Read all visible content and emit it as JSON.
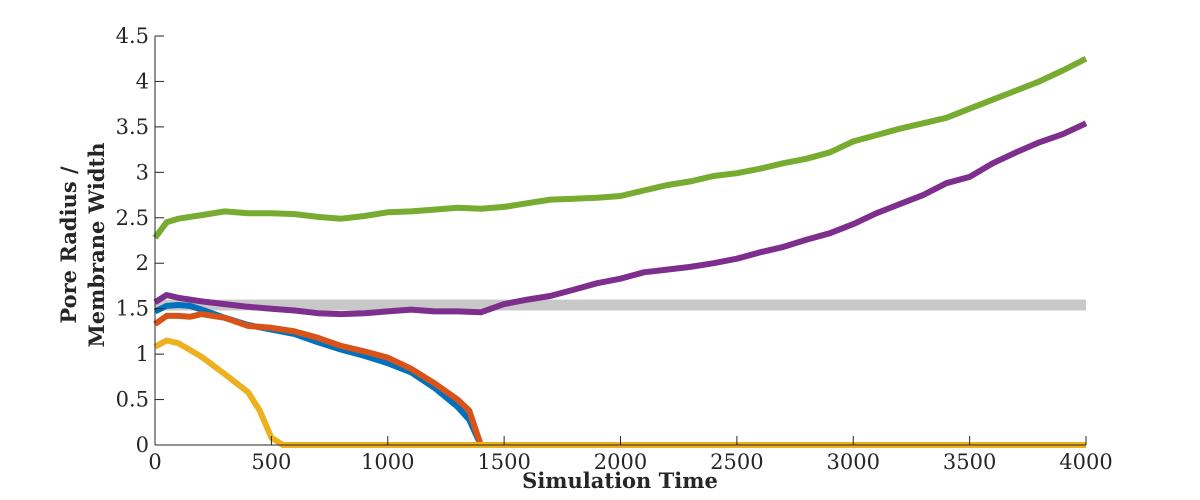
{
  "chart_data": {
    "type": "line",
    "title": "",
    "xlabel": "Simulation Time",
    "ylabel_lines": [
      "Pore Radius /",
      "Membrane Width"
    ],
    "xlim": [
      0,
      4000
    ],
    "ylim": [
      0,
      4.5
    ],
    "xticks": [
      0,
      500,
      1000,
      1500,
      2000,
      2500,
      3000,
      3500,
      4000
    ],
    "yticks": [
      0,
      0.5,
      1,
      1.5,
      2,
      2.5,
      3,
      3.5,
      4,
      4.5
    ],
    "xtick_labels": [
      "0",
      "500",
      "1000",
      "1500",
      "2000",
      "2500",
      "3000",
      "3500",
      "4000"
    ],
    "ytick_labels": [
      "0",
      "0.5",
      "1",
      "1.5",
      "2",
      "2.5",
      "3",
      "3.5",
      "4",
      "4.5"
    ],
    "grid": false,
    "reference_band": {
      "y_min": 1.48,
      "y_max": 1.6,
      "x": [
        0,
        4000
      ],
      "color": "#c8c8c8"
    },
    "series": [
      {
        "name": "green",
        "color": "#77ac30",
        "x": [
          0,
          50,
          100,
          200,
          300,
          400,
          500,
          600,
          700,
          800,
          900,
          1000,
          1100,
          1200,
          1300,
          1400,
          1500,
          1600,
          1700,
          1800,
          1900,
          2000,
          2100,
          2200,
          2300,
          2400,
          2500,
          2600,
          2700,
          2800,
          2900,
          3000,
          3100,
          3200,
          3300,
          3400,
          3500,
          3600,
          3700,
          3800,
          3900,
          4000
        ],
        "y": [
          2.28,
          2.45,
          2.49,
          2.53,
          2.57,
          2.55,
          2.55,
          2.54,
          2.51,
          2.49,
          2.52,
          2.56,
          2.57,
          2.59,
          2.61,
          2.6,
          2.62,
          2.66,
          2.7,
          2.71,
          2.72,
          2.74,
          2.8,
          2.86,
          2.9,
          2.96,
          2.99,
          3.04,
          3.1,
          3.15,
          3.22,
          3.34,
          3.41,
          3.48,
          3.54,
          3.6,
          3.7,
          3.8,
          3.9,
          4.0,
          4.12,
          4.25
        ]
      },
      {
        "name": "purple",
        "color": "#7e2f8e",
        "x": [
          0,
          50,
          100,
          150,
          200,
          300,
          400,
          500,
          600,
          700,
          800,
          900,
          1000,
          1100,
          1200,
          1300,
          1400,
          1500,
          1600,
          1700,
          1800,
          1900,
          2000,
          2100,
          2200,
          2300,
          2400,
          2500,
          2600,
          2700,
          2800,
          2900,
          3000,
          3100,
          3200,
          3300,
          3400,
          3500,
          3600,
          3700,
          3800,
          3900,
          4000
        ],
        "y": [
          1.57,
          1.65,
          1.62,
          1.6,
          1.58,
          1.55,
          1.52,
          1.5,
          1.48,
          1.45,
          1.44,
          1.45,
          1.47,
          1.49,
          1.47,
          1.47,
          1.46,
          1.55,
          1.6,
          1.64,
          1.71,
          1.78,
          1.83,
          1.9,
          1.93,
          1.96,
          2.0,
          2.05,
          2.12,
          2.18,
          2.26,
          2.33,
          2.43,
          2.55,
          2.65,
          2.75,
          2.88,
          2.95,
          3.1,
          3.22,
          3.33,
          3.42,
          3.54
        ]
      },
      {
        "name": "blue",
        "color": "#0072bd",
        "x": [
          0,
          50,
          100,
          150,
          200,
          300,
          400,
          500,
          600,
          700,
          800,
          900,
          1000,
          1100,
          1200,
          1300,
          1350,
          1400
        ],
        "y": [
          1.47,
          1.53,
          1.54,
          1.53,
          1.49,
          1.4,
          1.32,
          1.27,
          1.22,
          1.13,
          1.05,
          0.98,
          0.9,
          0.8,
          0.63,
          0.42,
          0.28,
          0.0
        ]
      },
      {
        "name": "orange",
        "color": "#d95319",
        "x": [
          0,
          50,
          100,
          150,
          200,
          300,
          400,
          500,
          600,
          700,
          800,
          900,
          1000,
          1100,
          1200,
          1300,
          1350,
          1400
        ],
        "y": [
          1.33,
          1.42,
          1.42,
          1.41,
          1.44,
          1.4,
          1.31,
          1.29,
          1.25,
          1.18,
          1.09,
          1.03,
          0.96,
          0.84,
          0.68,
          0.5,
          0.38,
          0.0
        ]
      },
      {
        "name": "yellow",
        "color": "#edb120",
        "x": [
          0,
          50,
          100,
          200,
          300,
          400,
          450,
          500,
          550,
          600,
          1000,
          2000,
          3000,
          4000
        ],
        "y": [
          1.08,
          1.15,
          1.12,
          0.97,
          0.78,
          0.58,
          0.38,
          0.08,
          0.0,
          0.0,
          0.0,
          0.0,
          0.0,
          0.0
        ]
      }
    ]
  }
}
